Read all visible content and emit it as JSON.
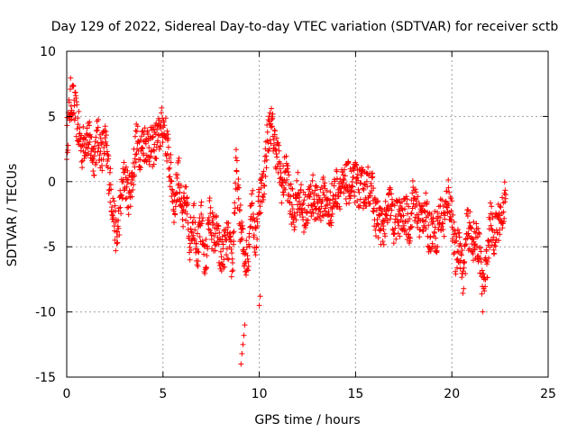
{
  "chart_data": {
    "type": "scatter",
    "title": "Day 129 of 2022, Sidereal Day-to-day VTEC variation (SDTVAR) for receiver sctb",
    "xlabel": "GPS time / hours",
    "ylabel": "SDTVAR / TECUs",
    "xlim": [
      0,
      25
    ],
    "ylim": [
      -15,
      10
    ],
    "xticks": [
      "0",
      "5",
      "10",
      "15",
      "20",
      "25"
    ],
    "yticks": [
      "-15",
      "-10",
      "-5",
      "0",
      "5",
      "10"
    ],
    "grid": true,
    "marker": "+",
    "color": "#ff0000",
    "series": [
      {
        "name": "SDTVAR",
        "x": [
          0.0,
          0.2,
          0.4,
          0.6,
          0.8,
          1.0,
          1.2,
          1.4,
          1.6,
          1.8,
          2.0,
          2.2,
          2.4,
          2.6,
          2.8,
          3.0,
          3.2,
          3.4,
          3.6,
          3.8,
          4.0,
          4.2,
          4.4,
          4.6,
          4.8,
          5.0,
          5.2,
          5.4,
          5.6,
          5.8,
          6.0,
          6.2,
          6.4,
          6.6,
          6.8,
          7.0,
          7.2,
          7.4,
          7.6,
          7.8,
          8.0,
          8.2,
          8.4,
          8.6,
          8.8,
          9.0,
          9.2,
          9.4,
          9.6,
          9.8,
          10.0,
          10.2,
          10.4,
          10.6,
          10.8,
          11.0,
          11.2,
          11.4,
          11.6,
          11.8,
          12.0,
          12.2,
          12.4,
          12.6,
          12.8,
          13.0,
          13.2,
          13.4,
          13.6,
          13.8,
          14.0,
          14.2,
          14.4,
          14.6,
          14.8,
          15.0,
          15.2,
          15.4,
          15.6,
          15.8,
          16.0,
          16.2,
          16.4,
          16.6,
          16.8,
          17.0,
          17.2,
          17.4,
          17.6,
          17.8,
          18.0,
          18.2,
          18.4,
          18.6,
          18.8,
          19.0,
          19.2,
          19.4,
          19.6,
          19.8,
          20.0,
          20.2,
          20.4,
          20.6,
          20.8,
          21.0,
          21.2,
          21.4,
          21.6,
          21.8,
          22.0,
          22.2,
          22.4,
          22.6,
          22.8
        ],
        "y": [
          3.0,
          6.4,
          5.8,
          4.0,
          2.5,
          3.5,
          3.0,
          1.8,
          3.5,
          2.2,
          3.0,
          0.5,
          -2.0,
          -4.5,
          -1.5,
          0.5,
          -1.0,
          0.0,
          3.0,
          2.5,
          3.0,
          3.0,
          2.5,
          3.0,
          3.5,
          4.5,
          3.0,
          0.5,
          -2.0,
          1.0,
          -3.0,
          -1.5,
          -4.5,
          -2.5,
          -5.5,
          -3.0,
          -6.5,
          -2.5,
          -4.0,
          -4.0,
          -6.0,
          -5.0,
          -4.5,
          -6.5,
          1.0,
          -3.0,
          -5.5,
          -6.0,
          -1.0,
          -5.0,
          -1.0,
          -0.5,
          3.0,
          4.5,
          3.0,
          1.5,
          -0.5,
          1.0,
          -1.5,
          -2.5,
          -0.5,
          -2.0,
          -2.5,
          -1.5,
          -1.0,
          -2.0,
          -1.5,
          -1.0,
          -2.5,
          -1.5,
          -0.5,
          -0.5,
          -0.5,
          0.0,
          -0.5,
          0.0,
          -0.5,
          -0.5,
          -0.5,
          0.0,
          -2.5,
          -3.0,
          -3.5,
          -3.0,
          -1.5,
          -3.5,
          -2.5,
          -3.0,
          -2.5,
          -3.5,
          -1.0,
          -2.5,
          -3.0,
          -2.0,
          -4.0,
          -3.5,
          -4.0,
          -2.5,
          -3.0,
          -1.0,
          -2.5,
          -6.0,
          -4.5,
          -7.5,
          -3.5,
          -4.0,
          -5.0,
          -4.5,
          -8.5,
          -6.5,
          -3.0,
          -4.5,
          -3.0,
          -2.5,
          -1.0
        ],
        "isolated_points": {
          "x": [
            9.05,
            9.1,
            9.15,
            9.2,
            9.25,
            10.0,
            10.05
          ],
          "y": [
            -14.0,
            -13.2,
            -12.5,
            -11.8,
            -11.0,
            -9.5,
            -8.8
          ]
        }
      }
    ]
  }
}
